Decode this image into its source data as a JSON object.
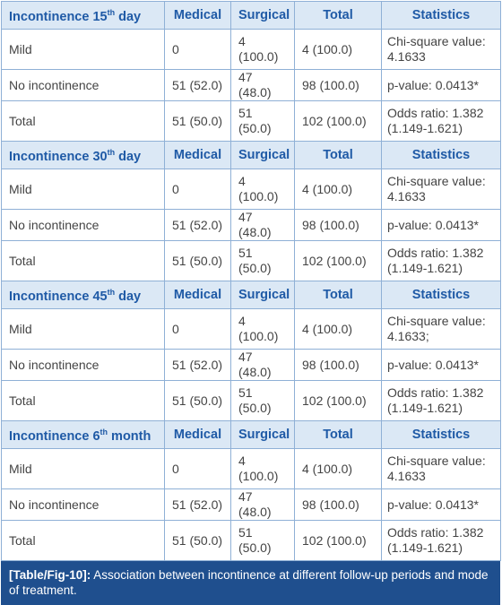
{
  "sections": [
    {
      "header": {
        "title": "Incontinence 15",
        "sup": "th",
        "title_end": " day",
        "columns": [
          "Medical",
          "Surgical",
          "Total",
          "Statistics"
        ]
      },
      "rows": [
        [
          "Mild",
          "0",
          "4 (100.0)",
          "4 (100.0)",
          "Chi-square value: 4.1633"
        ],
        [
          "No incontinence",
          "51 (52.0)",
          "47 (48.0)",
          "98 (100.0)",
          "p-value: 0.0413*"
        ],
        [
          "Total",
          "51 (50.0)",
          "51 (50.0)",
          "102 (100.0)",
          "Odds ratio: 1.382 (1.149-1.621)"
        ]
      ]
    },
    {
      "header": {
        "title": "Incontinence 30",
        "sup": "th",
        "title_end": " day",
        "columns": [
          "Medical",
          "Surgical",
          "Total",
          "Statistics"
        ]
      },
      "rows": [
        [
          "Mild",
          "0",
          "4 (100.0)",
          "4 (100.0)",
          "Chi-square value: 4.1633"
        ],
        [
          "No incontinence",
          "51 (52.0)",
          "47 (48.0)",
          "98 (100.0)",
          "p-value: 0.0413*"
        ],
        [
          "Total",
          "51 (50.0)",
          "51 (50.0)",
          "102 (100.0)",
          "Odds ratio: 1.382 (1.149-1.621)"
        ]
      ]
    },
    {
      "header": {
        "title": "Incontinence 45",
        "sup": "th",
        "title_end": " day",
        "columns": [
          "Medical",
          "Surgical",
          "Total",
          "Statistics"
        ]
      },
      "rows": [
        [
          "Mild",
          "0",
          "4 (100.0)",
          "4 (100.0)",
          "Chi-square value: 4.1633;"
        ],
        [
          "No incontinence",
          "51 (52.0)",
          "47 (48.0)",
          "98 (100.0)",
          "p-value: 0.0413*"
        ],
        [
          "Total",
          "51 (50.0)",
          "51 (50.0)",
          "102 (100.0)",
          "Odds ratio: 1.382 (1.149-1.621)"
        ]
      ]
    },
    {
      "header": {
        "title": "Incontinence 6",
        "sup": "th",
        "title_end": " month",
        "columns": [
          "Medical",
          "Surgical",
          "Total",
          "Statistics"
        ]
      },
      "rows": [
        [
          "Mild",
          "0",
          "4 (100.0)",
          "4 (100.0)",
          "Chi-square value: 4.1633"
        ],
        [
          "No incontinence",
          "51 (52.0)",
          "47 (48.0)",
          "98 (100.0)",
          "p-value: 0.0413*"
        ],
        [
          "Total",
          "51 (50.0)",
          "51 (50.0)",
          "102 (100.0)",
          "Odds ratio: 1.382 (1.149-1.621)"
        ]
      ]
    }
  ],
  "caption": {
    "label": "[Table/Fig-10]:",
    "text": " Association between incontinence at different follow-up periods and mode of treatment."
  }
}
